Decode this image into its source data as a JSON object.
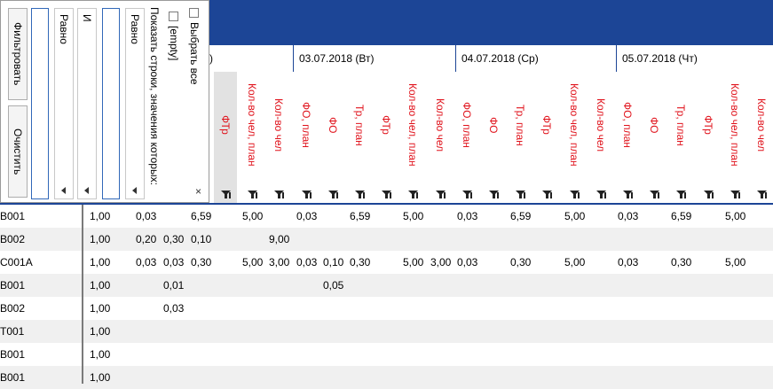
{
  "dates": [
    {
      "label": ")"
    },
    {
      "label": "03.07.2018 (Вт)"
    },
    {
      "label": "04.07.2018 (Ср)"
    },
    {
      "label": "05.07.2018 (Чт)"
    }
  ],
  "columns": [
    {
      "label": "ФТр"
    },
    {
      "label": "Кол-во чел, план"
    },
    {
      "label": "Кол-во чел"
    },
    {
      "label": "ФО, план"
    },
    {
      "label": "ФО"
    },
    {
      "label": "Тр, план"
    },
    {
      "label": "ФТр"
    },
    {
      "label": "Кол-во чел, план"
    },
    {
      "label": "Кол-во чел"
    },
    {
      "label": "ФО, план"
    },
    {
      "label": "ФО"
    },
    {
      "label": "Тр, план"
    },
    {
      "label": "ФТр"
    },
    {
      "label": "Кол-во чел, план"
    },
    {
      "label": "Кол-во чел"
    },
    {
      "label": "ФО, план"
    },
    {
      "label": "ФО"
    },
    {
      "label": "Тр, план"
    },
    {
      "label": "ФТр"
    },
    {
      "label": "Кол-во чел, план"
    },
    {
      "label": "Кол-во чел"
    }
  ],
  "rows": [
    {
      "code": "B001",
      "c1": "1,00",
      "c2": "0,03",
      "c3": "",
      "c4": "",
      "c5": "6,59",
      "cols": [
        "",
        "5,00",
        "",
        "0,03",
        "",
        "6,59",
        "",
        "5,00",
        "",
        "0,03",
        "",
        "6,59",
        "",
        "5,00",
        "",
        "0,03",
        "",
        "6,59",
        "",
        "5,00",
        ""
      ]
    },
    {
      "code": "B002",
      "c1": "1,00",
      "c2": "0,20",
      "c3": "0,30",
      "c4": "0,10",
      "c5": "",
      "cols": [
        "",
        "",
        "9,00",
        "",
        "",
        "",
        "",
        "",
        "",
        "",
        "",
        "",
        "",
        "",
        "",
        "",
        "",
        "",
        "",
        "",
        ""
      ]
    },
    {
      "code": "C001A",
      "c1": "1,00",
      "c2": "0,03",
      "c3": "0,03",
      "c4": "0,30",
      "c5": "",
      "cols": [
        "",
        "5,00",
        "3,00",
        "0,03",
        "0,10",
        "0,30",
        "",
        "5,00",
        "3,00",
        "0,03",
        "",
        "0,30",
        "",
        "5,00",
        "",
        "0,03",
        "",
        "0,30",
        "",
        "5,00",
        ""
      ]
    },
    {
      "code": "B001",
      "c1": "1,00",
      "c2": "",
      "c3": "0,01",
      "c4": "",
      "c5": "",
      "cols": [
        "",
        "",
        "",
        "",
        "0,05",
        "",
        "",
        "",
        "",
        "",
        "",
        "",
        "",
        "",
        "",
        "",
        "",
        "",
        "",
        "",
        ""
      ]
    },
    {
      "code": "B002",
      "c1": "1,00",
      "c2": "",
      "c3": "0,03",
      "c4": "",
      "c5": "",
      "cols": [
        "",
        "",
        "",
        "",
        "",
        "",
        "",
        "",
        "",
        "",
        "",
        "",
        "",
        "",
        "",
        "",
        "",
        "",
        "",
        "",
        ""
      ]
    },
    {
      "code": "T001",
      "c1": "1,00",
      "c2": "",
      "c3": "",
      "c4": "",
      "c5": "",
      "cols": [
        "",
        "",
        "",
        "",
        "",
        "",
        "",
        "",
        "",
        "",
        "",
        "",
        "",
        "",
        "",
        "",
        "",
        "",
        "",
        "",
        ""
      ]
    },
    {
      "code": "B001",
      "c1": "1,00",
      "c2": "",
      "c3": "",
      "c4": "",
      "c5": "",
      "cols": [
        "",
        "",
        "",
        "",
        "",
        "",
        "",
        "",
        "",
        "",
        "",
        "",
        "",
        "",
        "",
        "",
        "",
        "",
        "",
        "",
        ""
      ]
    },
    {
      "code": "B001",
      "c1": "1,00",
      "c2": "",
      "c3": "",
      "c4": "",
      "c5": "",
      "cols": [
        "",
        "",
        "",
        "",
        "",
        "",
        "",
        "",
        "",
        "",
        "",
        "",
        "",
        "",
        "",
        "",
        "",
        "",
        "",
        "",
        ""
      ]
    }
  ],
  "filter_popup": {
    "filter_button": "Фильтровать",
    "clear_button": "Очистить",
    "operator1": "Равно",
    "join": "И",
    "operator2": "Равно",
    "show_rows_label": "Показать строки, значения которых:",
    "select_all": "Выбрать все",
    "empty_option": "[empty]",
    "close": "×"
  },
  "colors": {
    "header_blue": "#1c4596",
    "label_red": "#e0121b"
  }
}
